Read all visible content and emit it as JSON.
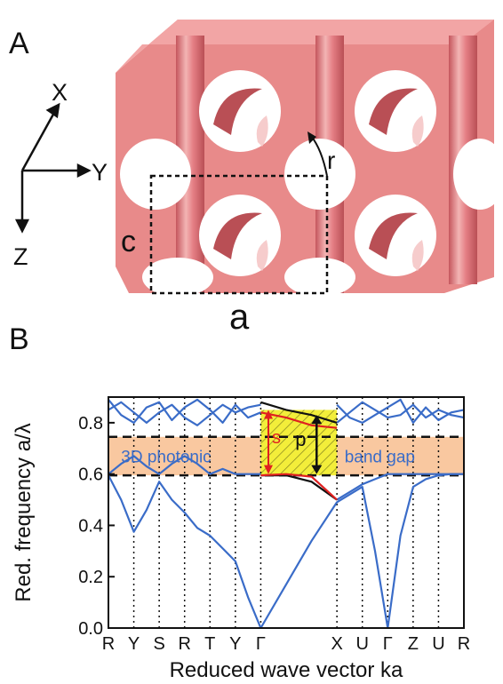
{
  "panels": {
    "a": {
      "label": "A",
      "axes": {
        "x": "X",
        "y": "Y",
        "z": "Z"
      },
      "lattice_labels": {
        "a": "a",
        "c": "c",
        "r": "r"
      },
      "colors": {
        "structure": "#e88a8a",
        "structure_dark": "#b94f55",
        "hole": "#ffffff"
      }
    },
    "b": {
      "label": "B"
    }
  },
  "chart_data": {
    "type": "line",
    "title": "",
    "xlabel": "Reduced wave vector ka",
    "ylabel": "Red. frequency a/λ",
    "ylim": [
      0,
      0.9
    ],
    "yticks": [
      0.0,
      0.2,
      0.4,
      0.6,
      0.8
    ],
    "ytick_labels": [
      "0.0",
      "0.2",
      "0.4",
      "0.6",
      "0.8"
    ],
    "kpoints": [
      "R",
      "Y",
      "S",
      "R",
      "T",
      "Y",
      "Γ",
      "X",
      "U",
      "Γ",
      "Z",
      "U",
      "R"
    ],
    "kpoint_positions": [
      0,
      1,
      2,
      3,
      4,
      5,
      6,
      9,
      10,
      11,
      12,
      13,
      14
    ],
    "grid": "dotted vertical lines at high-symmetry points",
    "band_gap": {
      "lower": 0.595,
      "upper": 0.745,
      "color": "#f9c8a0",
      "label_left": "3D photonic",
      "label_right": "band gap"
    },
    "highlight": {
      "x_from": 6,
      "x_to": 9,
      "y_from": 0.595,
      "y_to": 0.85,
      "color": "#f3ee3a",
      "label_s": "s",
      "label_p": "p"
    },
    "series_color": "#3a6cc8",
    "series": [
      {
        "name": "",
        "x": [
          0,
          0.5,
          1,
          1.5,
          2,
          2.5,
          3,
          3.5,
          4,
          4.5,
          5,
          5.5,
          6
        ],
        "y": [
          0.595,
          0.5,
          0.375,
          0.46,
          0.57,
          0.5,
          0.45,
          0.39,
          0.36,
          0.31,
          0.26,
          0.12,
          0.0
        ]
      },
      {
        "name": "",
        "x": [
          6,
          7,
          8,
          9,
          10,
          10.5,
          11
        ],
        "y": [
          0.0,
          0.17,
          0.34,
          0.49,
          0.55,
          0.3,
          0.0
        ]
      },
      {
        "name": "",
        "x": [
          11,
          11.5,
          12,
          12.5,
          13,
          13.5,
          14
        ],
        "y": [
          0.0,
          0.36,
          0.55,
          0.58,
          0.595,
          0.6,
          0.6
        ]
      },
      {
        "name": "",
        "x": [
          0,
          0.5,
          1,
          1.5,
          2,
          2.5,
          3,
          3.5,
          4,
          4.5,
          5,
          5.5,
          6
        ],
        "y": [
          0.6,
          0.64,
          0.67,
          0.63,
          0.6,
          0.64,
          0.67,
          0.64,
          0.6,
          0.62,
          0.6,
          0.6,
          0.6
        ]
      },
      {
        "name": "",
        "x": [
          9,
          9.5,
          10,
          10.5,
          11,
          11.5,
          12,
          12.5,
          13,
          13.5,
          14
        ],
        "y": [
          0.5,
          0.53,
          0.56,
          0.58,
          0.6,
          0.6,
          0.6,
          0.6,
          0.6,
          0.6,
          0.6
        ]
      },
      {
        "name": "",
        "x": [
          0,
          0.5,
          1,
          1.5,
          2,
          2.5,
          3,
          3.5,
          4,
          4.5,
          5,
          5.5,
          6
        ],
        "y": [
          0.85,
          0.88,
          0.84,
          0.8,
          0.84,
          0.87,
          0.82,
          0.79,
          0.83,
          0.87,
          0.84,
          0.86,
          0.87
        ]
      },
      {
        "name": "",
        "x": [
          0,
          0.5,
          1,
          1.5,
          2,
          2.5,
          3,
          3.5,
          4,
          4.5,
          5,
          5.5,
          6
        ],
        "y": [
          0.89,
          0.83,
          0.8,
          0.86,
          0.88,
          0.81,
          0.86,
          0.89,
          0.85,
          0.8,
          0.87,
          0.82,
          0.84
        ]
      },
      {
        "name": "",
        "x": [
          9,
          9.5,
          10,
          10.5,
          11,
          11.5,
          12,
          12.5,
          13,
          13.5,
          14
        ],
        "y": [
          0.8,
          0.84,
          0.88,
          0.85,
          0.82,
          0.83,
          0.87,
          0.82,
          0.85,
          0.83,
          0.82
        ]
      },
      {
        "name": "",
        "x": [
          9,
          9.5,
          10,
          10.5,
          11,
          11.5,
          12,
          12.5,
          13,
          13.5,
          14
        ],
        "y": [
          0.87,
          0.82,
          0.8,
          0.83,
          0.86,
          0.89,
          0.8,
          0.86,
          0.81,
          0.84,
          0.85
        ]
      }
    ],
    "highlight_curves": [
      {
        "color": "#111111",
        "x": [
          6,
          7,
          8,
          9
        ],
        "y": [
          0.88,
          0.85,
          0.83,
          0.8
        ]
      },
      {
        "color": "#111111",
        "x": [
          6,
          7,
          8,
          9
        ],
        "y": [
          0.595,
          0.595,
          0.57,
          0.5
        ]
      },
      {
        "color": "#e02020",
        "x": [
          6,
          7,
          8,
          9
        ],
        "y": [
          0.595,
          0.6,
          0.59,
          0.5
        ]
      },
      {
        "color": "#e02020",
        "x": [
          6,
          7,
          8,
          9
        ],
        "y": [
          0.84,
          0.82,
          0.79,
          0.78
        ]
      }
    ]
  }
}
